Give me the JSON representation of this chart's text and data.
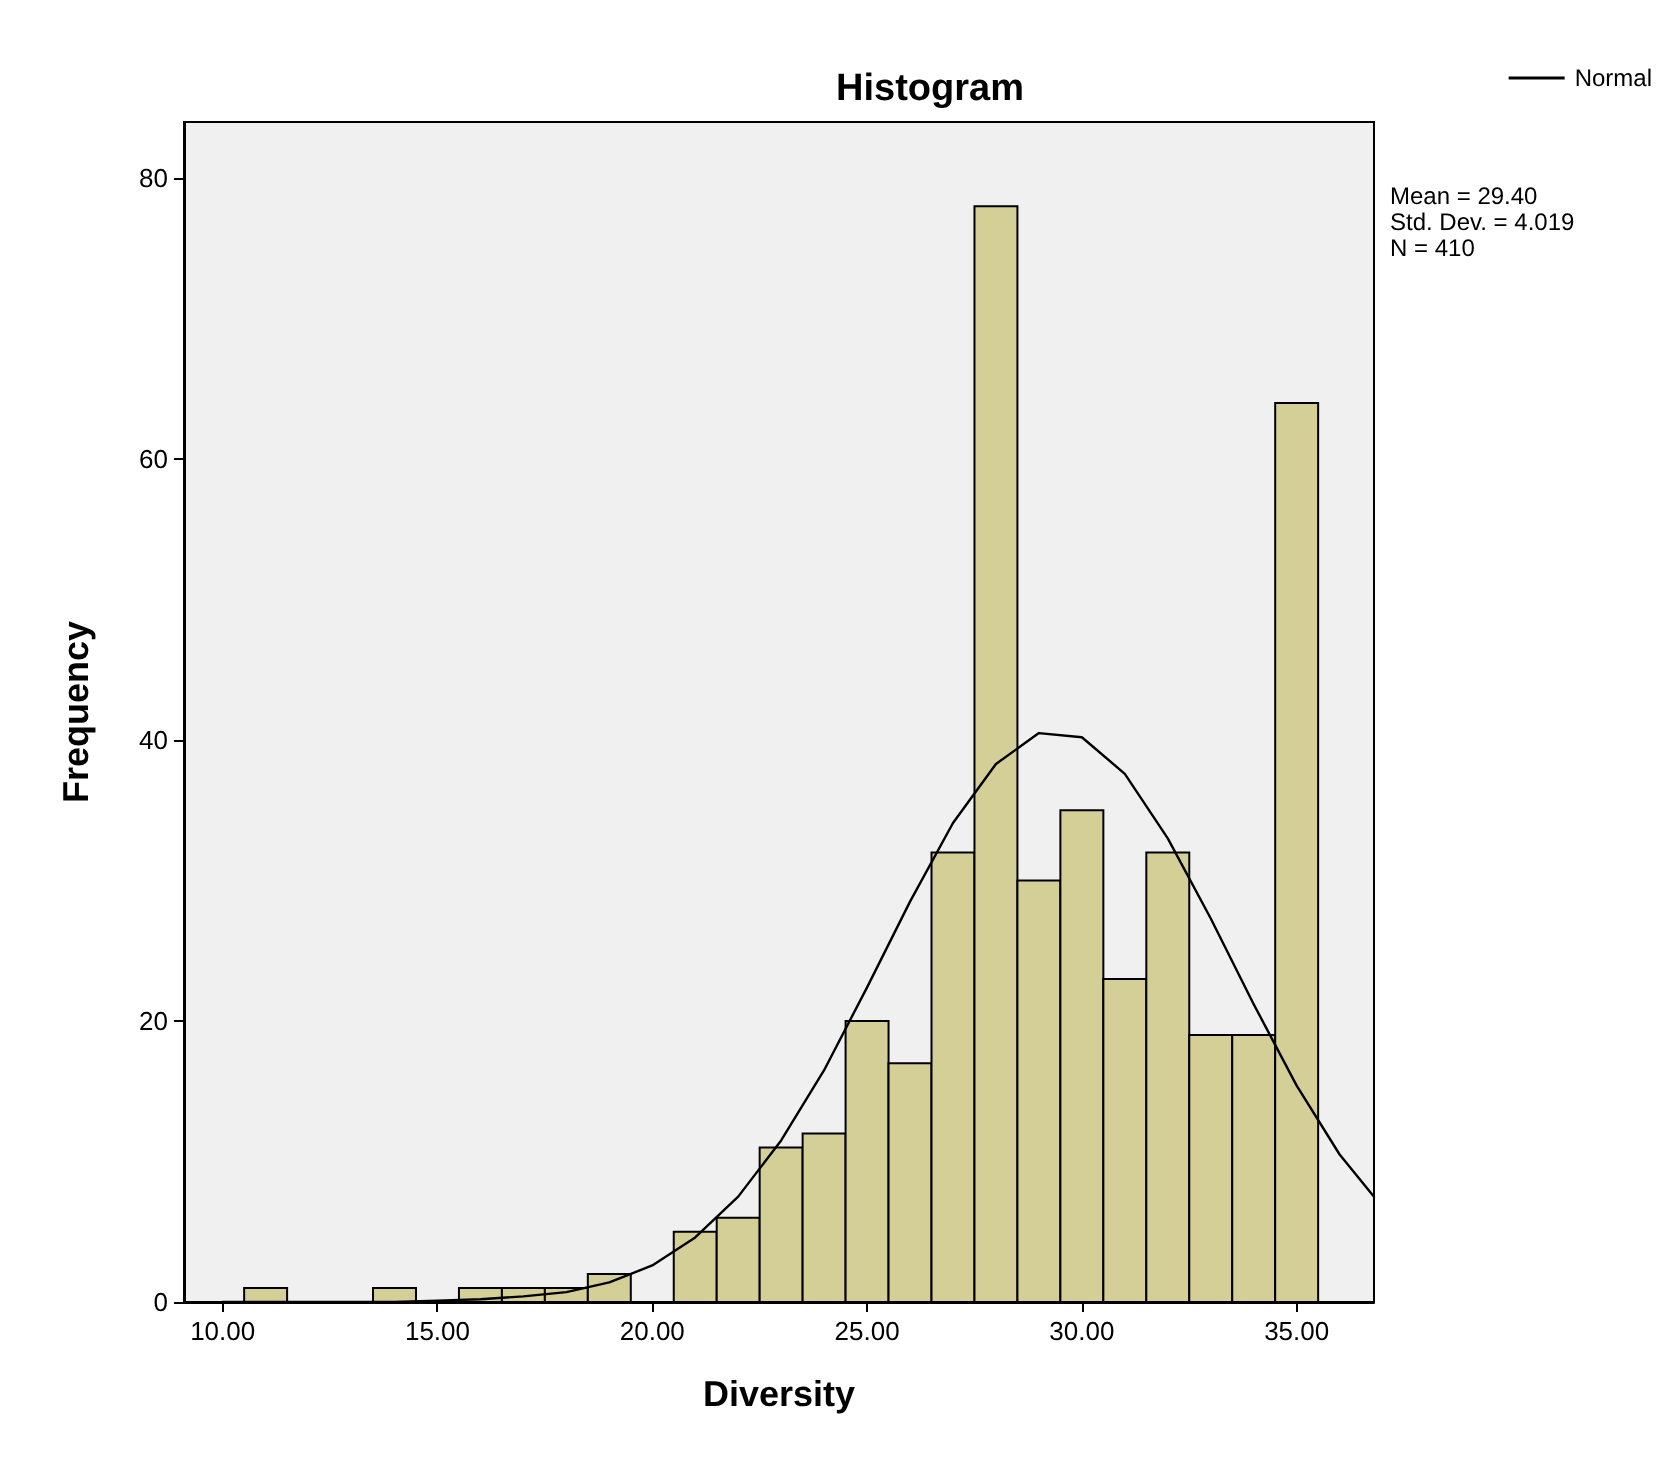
{
  "chart_data": {
    "type": "histogram",
    "title": "Histogram",
    "xlabel": "Diversity",
    "ylabel": "Frequency",
    "bins": [
      10.5,
      11.5,
      12.5,
      13.5,
      14.5,
      15.5,
      16.5,
      17.5,
      18.5,
      19.5,
      20.5,
      21.5,
      22.5,
      23.5,
      24.5,
      25.5,
      26.5,
      27.5,
      28.5,
      29.5,
      30.5,
      31.5,
      32.5,
      33.5,
      34.5,
      35.5
    ],
    "values": [
      1,
      0,
      0,
      1,
      0,
      1,
      1,
      1,
      2,
      0,
      5,
      6,
      11,
      12,
      20,
      17,
      32,
      78,
      30,
      35,
      23,
      32,
      19,
      19,
      64
    ],
    "color": "#d3cf96",
    "series": [
      {
        "name": "Normal",
        "type": "line",
        "color": "#000000",
        "x": [
          10,
          12,
          14,
          15,
          16,
          17,
          18,
          19,
          20,
          21,
          22,
          23,
          24,
          25,
          26,
          27,
          28,
          29,
          30,
          31,
          32,
          33,
          34,
          35,
          36,
          36.8
        ],
        "values": [
          0,
          0,
          0,
          0.1,
          0.2,
          0.4,
          0.7,
          1.4,
          2.6,
          4.6,
          7.5,
          11.5,
          16.5,
          22.4,
          28.5,
          34.1,
          38.3,
          40.5,
          40.2,
          37.6,
          33,
          27.3,
          21.2,
          15.4,
          10.5,
          7.5
        ]
      }
    ],
    "xlim": [
      9.1,
      36.8
    ],
    "ylim": [
      0,
      84
    ],
    "xticks": [
      {
        "value": 10,
        "label": "10.00"
      },
      {
        "value": 15,
        "label": "15.00"
      },
      {
        "value": 20,
        "label": "20.00"
      },
      {
        "value": 25,
        "label": "25.00"
      },
      {
        "value": 30,
        "label": "30.00"
      },
      {
        "value": 35,
        "label": "35.00"
      }
    ],
    "yticks": [
      0,
      20,
      40,
      60,
      80
    ],
    "grid": false,
    "legend": "top right",
    "marker": "none",
    "line_style": "solid",
    "annotations": [
      "Mean = 29.40",
      "Std. Dev. = 4.019",
      "N = 410"
    ]
  }
}
